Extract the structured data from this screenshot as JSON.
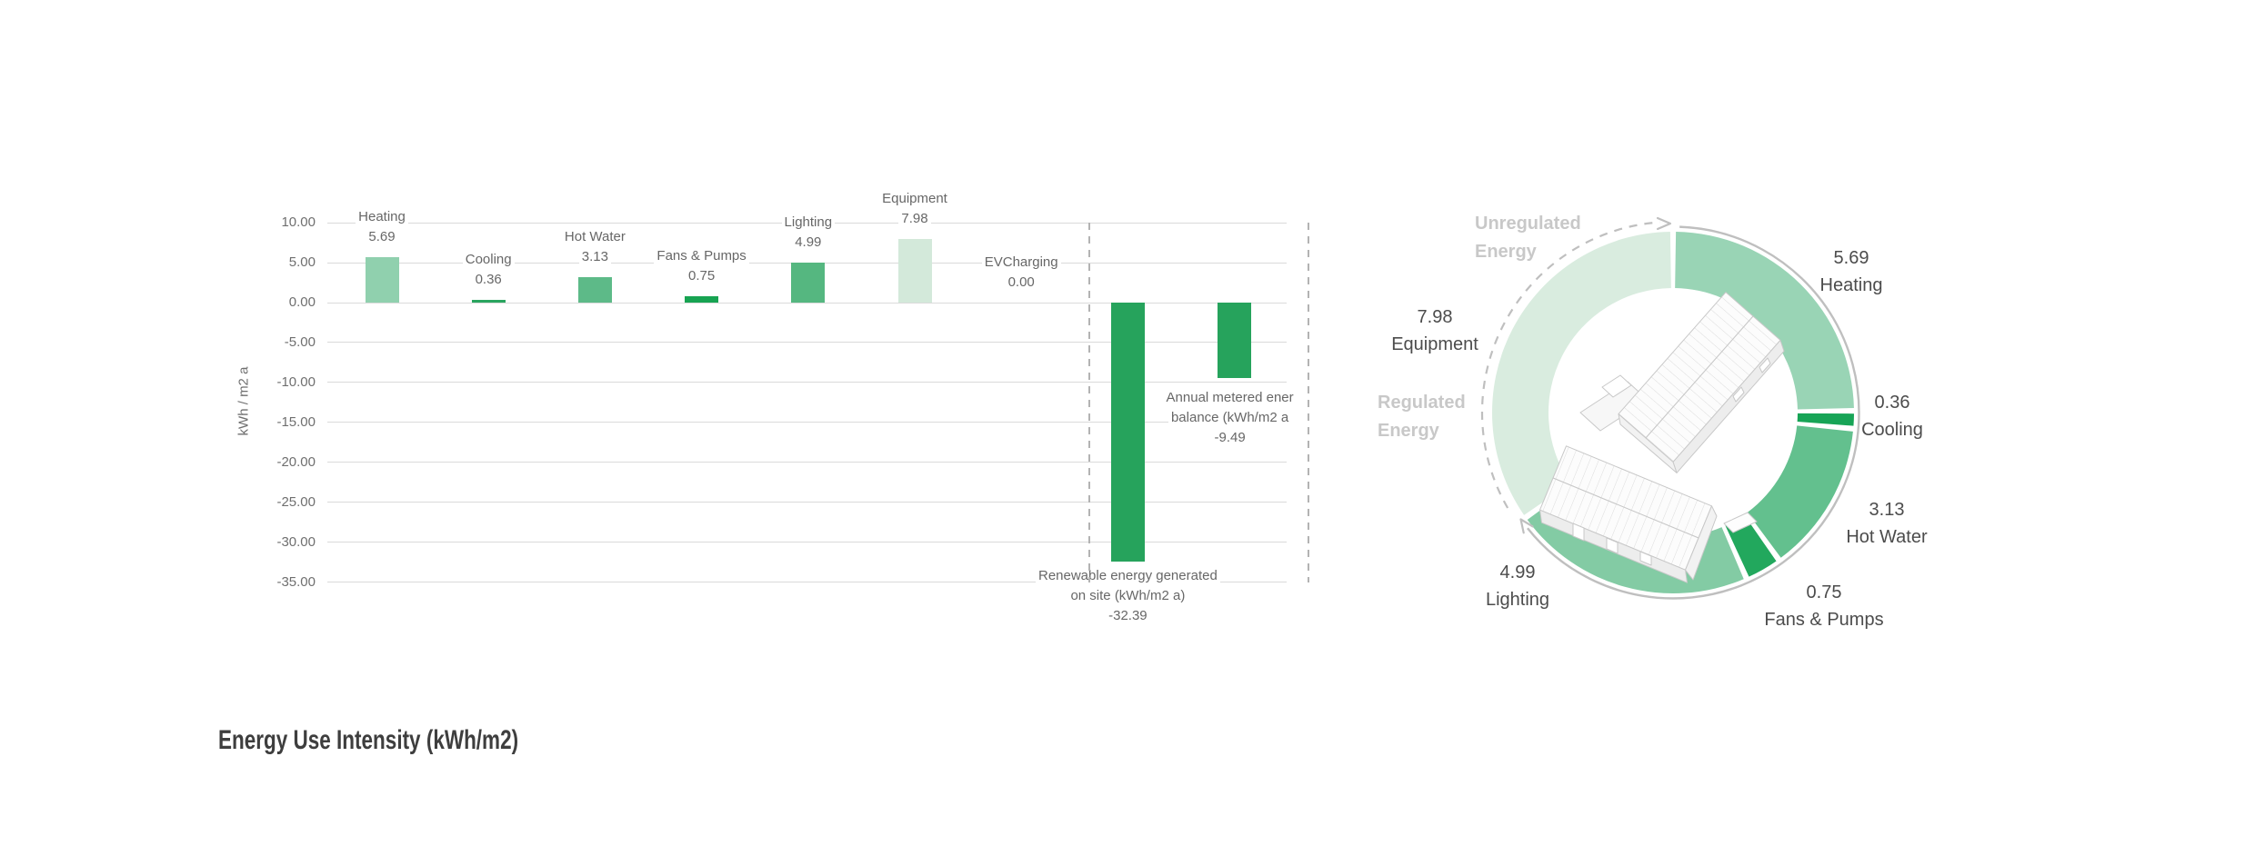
{
  "title": "Energy Use Intensity (kWh/m2)",
  "chart_data": [
    {
      "type": "bar",
      "title": "Energy Use Intensity (kWh/m2)",
      "ylabel": "kWh / m2 a",
      "ylim": [
        -35,
        10
      ],
      "grid": true,
      "y_ticks": [
        {
          "label": "10.00",
          "value": 10
        },
        {
          "label": "5.00",
          "value": 5
        },
        {
          "label": "0.00",
          "value": 0
        },
        {
          "label": "-5.00",
          "value": -5
        },
        {
          "label": "-10.00",
          "value": -10
        },
        {
          "label": "-15.00",
          "value": -15
        },
        {
          "label": "-20.00",
          "value": -20
        },
        {
          "label": "-25.00",
          "value": -25
        },
        {
          "label": "-30.00",
          "value": -30
        },
        {
          "label": "-35.00",
          "value": -35
        }
      ],
      "bars": [
        {
          "name": "Heating",
          "value": 5.69,
          "value_label": "5.69",
          "color": "#90d0ae",
          "label_pos": "above"
        },
        {
          "name": "Cooling",
          "value": 0.36,
          "value_label": "0.36",
          "color": "#2aa55f",
          "label_pos": "above"
        },
        {
          "name": "Hot Water",
          "value": 3.13,
          "value_label": "3.13",
          "color": "#5dba88",
          "label_pos": "above"
        },
        {
          "name": "Fans & Pumps",
          "value": 0.75,
          "value_label": "0.75",
          "color": "#17a352",
          "label_pos": "above"
        },
        {
          "name": "Lighting",
          "value": 4.99,
          "value_label": "4.99",
          "color": "#55b780",
          "label_pos": "above"
        },
        {
          "name": "Equipment",
          "value": 7.98,
          "value_label": "7.98",
          "color": "#d3e9da",
          "label_pos": "above"
        },
        {
          "name": "EVCharging",
          "value": 0.0,
          "value_label": "0.00",
          "color": null,
          "label_pos": "above"
        },
        {
          "name": "Renewable energy generated on site",
          "value": -32.39,
          "value_label": "-32.39",
          "color": "#26a35c",
          "label_pos": "below",
          "label_lines": [
            "Renewable energy generated",
            "on site (kWh/m2 a)",
            "-32.39"
          ]
        },
        {
          "name": "Annual metered energy balance",
          "value": -9.49,
          "value_label": "-9.49",
          "color": "#26a35c",
          "label_pos": "beside",
          "label_lines": [
            "Annual metered ener",
            "balance (kWh/m2 a",
            "-9.49"
          ]
        }
      ]
    },
    {
      "type": "pie",
      "subtype": "donut",
      "legend_position": "around",
      "center_image": "building-axonometric-drawing",
      "segments": [
        {
          "label": "Heating",
          "value": 5.69,
          "value_label": "5.69",
          "color": "#99d4b5"
        },
        {
          "label": "Cooling",
          "value": 0.36,
          "value_label": "0.36",
          "color": "#17a456"
        },
        {
          "label": "Hot Water",
          "value": 3.13,
          "value_label": "3.13",
          "color": "#63c08e"
        },
        {
          "label": "Fans & Pumps",
          "value": 0.75,
          "value_label": "0.75",
          "color": "#22a85d"
        },
        {
          "label": "Lighting",
          "value": 4.99,
          "value_label": "4.99",
          "color": "#83cba4"
        },
        {
          "label": "Equipment",
          "value": 7.98,
          "value_label": "7.98",
          "color": "#d9ecdf"
        }
      ],
      "arc_labels": [
        {
          "name": "unregulated",
          "lines": [
            "Unregulated",
            "Energy"
          ],
          "style": "dashed-arc"
        },
        {
          "name": "regulated",
          "lines": [
            "Regulated",
            "Energy"
          ],
          "style": "solid-arc"
        }
      ],
      "colors": {
        "arc_gray": "#bfbfbf",
        "label_gray": "#c8c8c8",
        "text_dark": "#4c4c4c"
      }
    }
  ]
}
